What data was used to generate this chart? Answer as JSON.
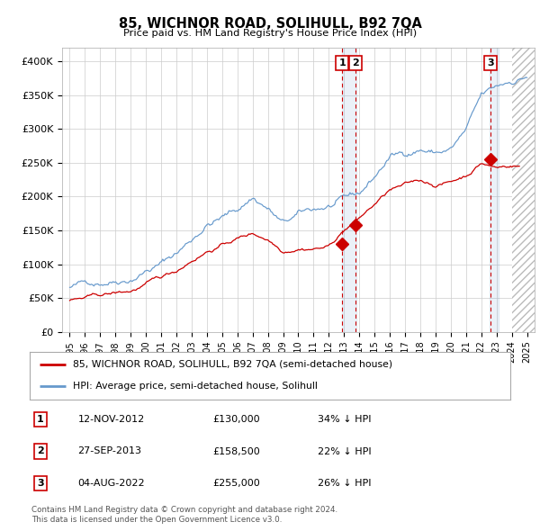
{
  "title": "85, WICHNOR ROAD, SOLIHULL, B92 7QA",
  "subtitle": "Price paid vs. HM Land Registry's House Price Index (HPI)",
  "ylim": [
    0,
    420000
  ],
  "yticks": [
    0,
    50000,
    100000,
    150000,
    200000,
    250000,
    300000,
    350000,
    400000
  ],
  "ytick_labels": [
    "£0",
    "£50K",
    "£100K",
    "£150K",
    "£200K",
    "£250K",
    "£300K",
    "£350K",
    "£400K"
  ],
  "xlim_start": 1994.5,
  "xlim_end": 2025.5,
  "xticks": [
    1995,
    1996,
    1997,
    1998,
    1999,
    2000,
    2001,
    2002,
    2003,
    2004,
    2005,
    2006,
    2007,
    2008,
    2009,
    2010,
    2011,
    2012,
    2013,
    2014,
    2015,
    2016,
    2017,
    2018,
    2019,
    2020,
    2021,
    2022,
    2023,
    2024,
    2025
  ],
  "transaction_dates": [
    2012.87,
    2013.74,
    2022.59
  ],
  "transaction_prices": [
    130000,
    158500,
    255000
  ],
  "transaction_labels": [
    "1",
    "2",
    "3"
  ],
  "legend_line1": "85, WICHNOR ROAD, SOLIHULL, B92 7QA (semi-detached house)",
  "legend_line2": "HPI: Average price, semi-detached house, Solihull",
  "table_rows": [
    [
      "1",
      "12-NOV-2012",
      "£130,000",
      "34% ↓ HPI"
    ],
    [
      "2",
      "27-SEP-2013",
      "£158,500",
      "22% ↓ HPI"
    ],
    [
      "3",
      "04-AUG-2022",
      "£255,000",
      "26% ↓ HPI"
    ]
  ],
  "footnote1": "Contains HM Land Registry data © Crown copyright and database right 2024.",
  "footnote2": "This data is licensed under the Open Government Licence v3.0.",
  "red_color": "#cc0000",
  "blue_color": "#6699cc",
  "background_color": "#ffffff",
  "grid_color": "#cccccc",
  "hpi_control_years": [
    1995,
    1997,
    1999,
    2000,
    2001,
    2002,
    2003,
    2004,
    2005,
    2006,
    2007,
    2008,
    2009,
    2010,
    2011,
    2012,
    2013,
    2014,
    2015,
    2016,
    2017,
    2018,
    2019,
    2020,
    2021,
    2022,
    2023,
    2024,
    2025
  ],
  "hpi_control_vals": [
    65000,
    75000,
    90000,
    105000,
    115000,
    130000,
    150000,
    175000,
    185000,
    195000,
    215000,
    200000,
    175000,
    185000,
    190000,
    195000,
    200000,
    205000,
    230000,
    260000,
    265000,
    275000,
    270000,
    275000,
    300000,
    345000,
    355000,
    365000,
    375000
  ],
  "red_control_years": [
    1995,
    1997,
    1999,
    2000,
    2001,
    2002,
    2003,
    2004,
    2005,
    2006,
    2007,
    2008,
    2009,
    2010,
    2011,
    2012,
    2013,
    2014,
    2015,
    2016,
    2017,
    2018,
    2019,
    2020,
    2021,
    2022,
    2023,
    2024
  ],
  "red_control_vals": [
    46000,
    50000,
    55000,
    65000,
    72000,
    82000,
    100000,
    115000,
    125000,
    135000,
    142000,
    135000,
    120000,
    128000,
    130000,
    133000,
    158000,
    175000,
    195000,
    215000,
    220000,
    225000,
    220000,
    225000,
    235000,
    255000,
    248000,
    252000
  ],
  "hatch_start": 2024.0,
  "span1_start": 2012.85,
  "span1_end": 2013.78,
  "span2_start": 2022.54,
  "span2_end": 2023.12
}
